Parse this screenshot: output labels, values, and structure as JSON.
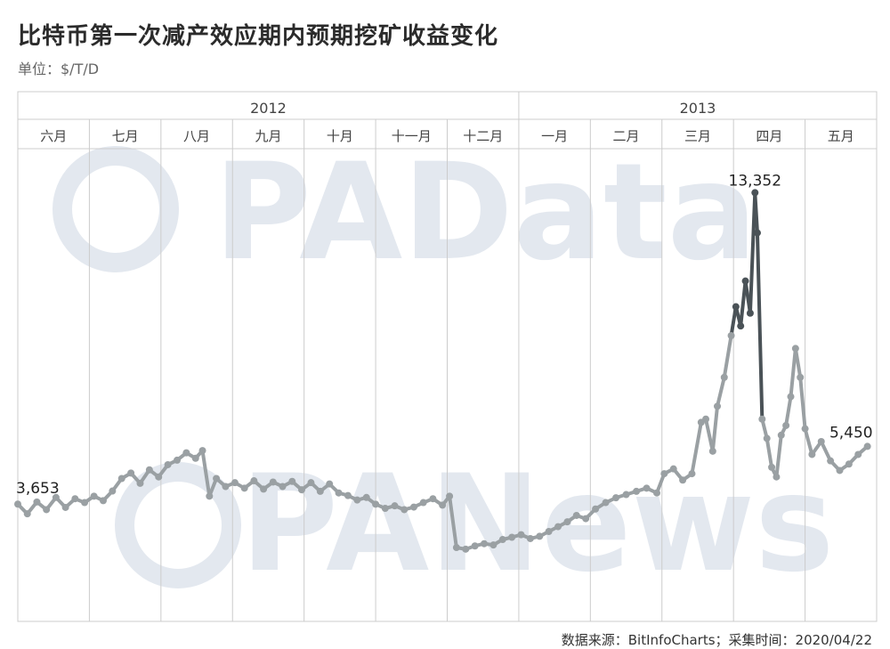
{
  "title": "比特币第一次减产效应期内预期挖矿收益变化",
  "unit": "单位：$/T/D",
  "source": "数据来源：BitInfoCharts；采集时间：2020/04/22",
  "watermarks": [
    "PAData",
    "PANews"
  ],
  "colors": {
    "line": "#9aa0a3",
    "peak": "#4a5257",
    "grid": "#cccccc",
    "watermark": "#e3e8ef"
  },
  "chart_data": {
    "type": "line",
    "title": "比特币第一次减产效应期内预期挖矿收益变化",
    "ylabel": "单位：$/T/D",
    "years": [
      {
        "label": "2012",
        "months": [
          "六月",
          "七月",
          "八月",
          "九月",
          "十月",
          "十一月",
          "十二月"
        ]
      },
      {
        "label": "2013",
        "months": [
          "一月",
          "二月",
          "三月",
          "四月",
          "五月"
        ]
      }
    ],
    "categories": [
      "六月",
      "七月",
      "八月",
      "九月",
      "十月",
      "十一月",
      "十二月",
      "一月",
      "二月",
      "三月",
      "四月",
      "五月"
    ],
    "ylim": [
      0,
      14500
    ],
    "grid": "vertical month separators",
    "annotations": [
      {
        "label": "3,653",
        "position": "start"
      },
      {
        "label": "13,352",
        "position": "peak"
      },
      {
        "label": "5,450",
        "position": "end"
      }
    ],
    "series": [
      {
        "points": [
          [
            "2012-06-01",
            3653
          ],
          [
            "2012-06-05",
            3350
          ],
          [
            "2012-06-09",
            3720
          ],
          [
            "2012-06-13",
            3480
          ],
          [
            "2012-06-17",
            3860
          ],
          [
            "2012-06-21",
            3550
          ],
          [
            "2012-06-25",
            3820
          ],
          [
            "2012-06-29",
            3700
          ],
          [
            "2012-07-03",
            3900
          ],
          [
            "2012-07-07",
            3760
          ],
          [
            "2012-07-11",
            4060
          ],
          [
            "2012-07-15",
            4450
          ],
          [
            "2012-07-19",
            4620
          ],
          [
            "2012-07-23",
            4300
          ],
          [
            "2012-07-27",
            4720
          ],
          [
            "2012-07-31",
            4500
          ],
          [
            "2012-08-04",
            4880
          ],
          [
            "2012-08-08",
            5020
          ],
          [
            "2012-08-12",
            5250
          ],
          [
            "2012-08-16",
            5080
          ],
          [
            "2012-08-19",
            5320
          ],
          [
            "2012-08-22",
            3900
          ],
          [
            "2012-08-25",
            4450
          ],
          [
            "2012-08-29",
            4200
          ],
          [
            "2012-09-02",
            4320
          ],
          [
            "2012-09-06",
            4150
          ],
          [
            "2012-09-10",
            4380
          ],
          [
            "2012-09-14",
            4120
          ],
          [
            "2012-09-18",
            4340
          ],
          [
            "2012-09-22",
            4200
          ],
          [
            "2012-09-26",
            4360
          ],
          [
            "2012-09-30",
            4100
          ],
          [
            "2012-10-04",
            4320
          ],
          [
            "2012-10-08",
            4050
          ],
          [
            "2012-10-12",
            4280
          ],
          [
            "2012-10-16",
            4000
          ],
          [
            "2012-10-20",
            3920
          ],
          [
            "2012-10-24",
            3780
          ],
          [
            "2012-10-28",
            3860
          ],
          [
            "2012-11-01",
            3650
          ],
          [
            "2012-11-05",
            3520
          ],
          [
            "2012-11-09",
            3600
          ],
          [
            "2012-11-13",
            3480
          ],
          [
            "2012-11-17",
            3560
          ],
          [
            "2012-11-21",
            3700
          ],
          [
            "2012-11-25",
            3820
          ],
          [
            "2012-11-29",
            3620
          ],
          [
            "2012-12-02",
            3900
          ],
          [
            "2012-12-05",
            2300
          ],
          [
            "2012-12-09",
            2250
          ],
          [
            "2012-12-13",
            2350
          ],
          [
            "2012-12-17",
            2420
          ],
          [
            "2012-12-21",
            2380
          ],
          [
            "2012-12-25",
            2550
          ],
          [
            "2012-12-29",
            2620
          ],
          [
            "2013-01-02",
            2700
          ],
          [
            "2013-01-06",
            2580
          ],
          [
            "2013-01-10",
            2650
          ],
          [
            "2013-01-14",
            2800
          ],
          [
            "2013-01-18",
            2950
          ],
          [
            "2013-01-22",
            3100
          ],
          [
            "2013-01-26",
            3300
          ],
          [
            "2013-01-30",
            3200
          ],
          [
            "2013-02-03",
            3500
          ],
          [
            "2013-02-07",
            3700
          ],
          [
            "2013-02-11",
            3850
          ],
          [
            "2013-02-15",
            3950
          ],
          [
            "2013-02-19",
            4050
          ],
          [
            "2013-02-23",
            4150
          ],
          [
            "2013-02-27",
            4000
          ],
          [
            "2013-03-02",
            4600
          ],
          [
            "2013-03-06",
            4750
          ],
          [
            "2013-03-10",
            4400
          ],
          [
            "2013-03-14",
            4600
          ],
          [
            "2013-03-18",
            6200
          ],
          [
            "2013-03-20",
            6300
          ],
          [
            "2013-03-23",
            5300
          ],
          [
            "2013-03-25",
            6700
          ],
          [
            "2013-03-28",
            7600
          ],
          [
            "2013-03-31",
            8900
          ],
          [
            "2013-04-02",
            9800
          ],
          [
            "2013-04-04",
            9200
          ],
          [
            "2013-04-06",
            10600
          ],
          [
            "2013-04-08",
            9600
          ],
          [
            "2013-04-10",
            13352
          ],
          [
            "2013-04-11",
            12100
          ],
          [
            "2013-04-13",
            6300
          ],
          [
            "2013-04-15",
            5700
          ],
          [
            "2013-04-17",
            4800
          ],
          [
            "2013-04-19",
            4500
          ],
          [
            "2013-04-21",
            5800
          ],
          [
            "2013-04-23",
            6100
          ],
          [
            "2013-04-25",
            7000
          ],
          [
            "2013-04-27",
            8500
          ],
          [
            "2013-04-29",
            7600
          ],
          [
            "2013-05-01",
            6000
          ],
          [
            "2013-05-04",
            5200
          ],
          [
            "2013-05-08",
            5600
          ],
          [
            "2013-05-12",
            5000
          ],
          [
            "2013-05-16",
            4700
          ],
          [
            "2013-05-20",
            4900
          ],
          [
            "2013-05-24",
            5200
          ],
          [
            "2013-05-28",
            5450
          ]
        ]
      }
    ]
  }
}
